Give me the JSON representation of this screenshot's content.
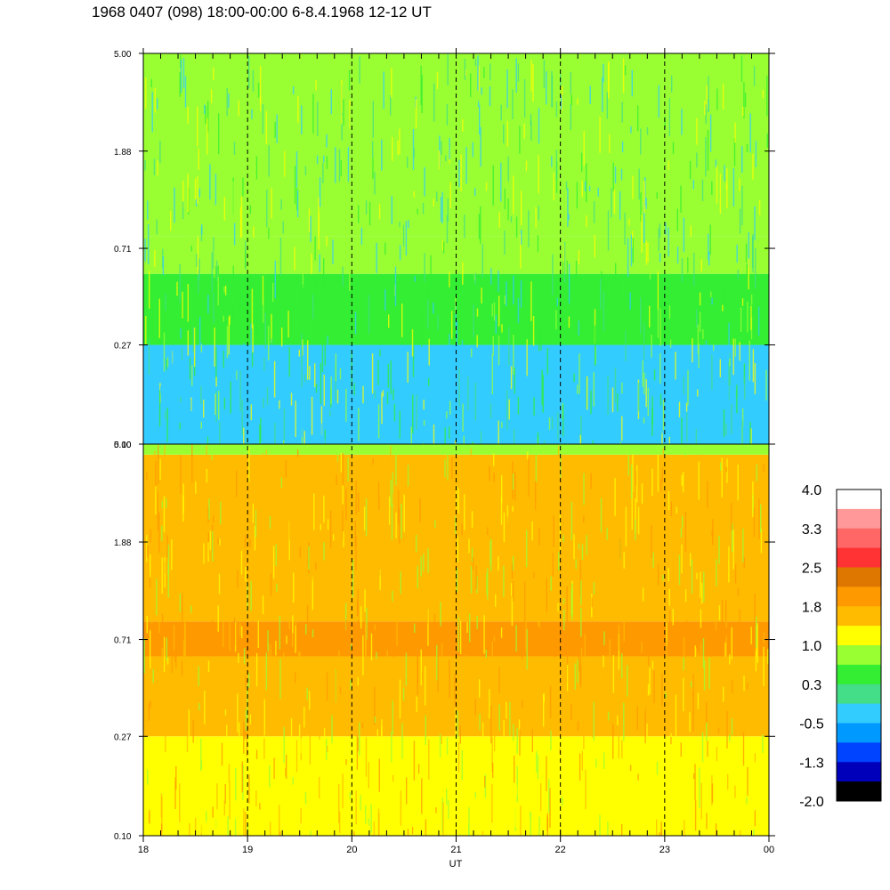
{
  "title": "1968 0407 (098) 18:00-00:00 6-8.4.1968  12-12 UT",
  "chart_data": {
    "type": "heatmap",
    "xlabel": "UT",
    "x_ticks": [
      "18",
      "19",
      "20",
      "21",
      "22",
      "23",
      "00"
    ],
    "x_range_hours": [
      18,
      24
    ],
    "y_scale": "log",
    "y_range": [
      0.1,
      5.0
    ],
    "panels": [
      {
        "y_ticks": [
          "5.00",
          "1.88",
          "0.71",
          "0.27",
          "0.10"
        ],
        "dominant_colors": [
          "#33ccff",
          "#44dd88",
          "#33ee33",
          "#99ff33",
          "#ffff00"
        ],
        "band_features": [
          {
            "y_from": 0.1,
            "y_to": 0.27,
            "color": "#33ccff"
          },
          {
            "y_from": 0.27,
            "y_to": 0.55,
            "color": "#33ee33"
          },
          {
            "y_from": 0.55,
            "y_to": 0.8,
            "color": "#99ff33"
          },
          {
            "y_from": 0.8,
            "y_to": 5.0,
            "color": "#99ff33"
          }
        ]
      },
      {
        "y_ticks": [
          "5.00",
          "1.88",
          "0.71",
          "0.27",
          "0.10"
        ],
        "dominant_colors": [
          "#ffff00",
          "#ffbb00",
          "#ff9900",
          "#99ff33"
        ],
        "band_features": [
          {
            "y_from": 0.1,
            "y_to": 0.27,
            "color": "#ffff00"
          },
          {
            "y_from": 0.27,
            "y_to": 0.6,
            "color": "#ffbb00"
          },
          {
            "y_from": 0.6,
            "y_to": 0.85,
            "color": "#ff9900"
          },
          {
            "y_from": 0.85,
            "y_to": 4.5,
            "color": "#ffbb00"
          },
          {
            "y_from": 4.5,
            "y_to": 5.0,
            "color": "#99ff33"
          }
        ]
      }
    ],
    "grid": "dashed vertical lines at each hour",
    "colorbar": {
      "labels": [
        "4.0",
        "3.3",
        "2.5",
        "1.8",
        "1.0",
        "0.3",
        "-0.5",
        "-1.3",
        "-2.0"
      ],
      "colors": [
        "#ffffff",
        "#ff9999",
        "#ff6666",
        "#ff3333",
        "#dd7700",
        "#ff9900",
        "#ffbb00",
        "#ffff00",
        "#99ff33",
        "#33ee33",
        "#44dd88",
        "#33ccff",
        "#0099ff",
        "#0044ff",
        "#0000bb",
        "#000000"
      ]
    }
  }
}
